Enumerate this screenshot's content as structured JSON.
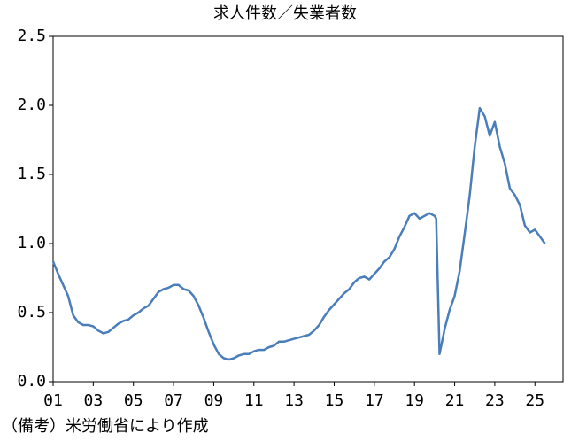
{
  "chart_data": {
    "type": "line",
    "title": "求人件数／失業者数",
    "note": "（備考）米労働省により作成",
    "x": [
      1,
      1.25,
      1.5,
      1.75,
      2,
      2.25,
      2.5,
      2.75,
      3,
      3.25,
      3.5,
      3.75,
      4,
      4.25,
      4.5,
      4.75,
      5,
      5.25,
      5.5,
      5.75,
      6,
      6.25,
      6.5,
      6.75,
      7,
      7.25,
      7.5,
      7.75,
      8,
      8.25,
      8.5,
      8.75,
      9,
      9.25,
      9.5,
      9.75,
      10,
      10.25,
      10.5,
      10.75,
      11,
      11.25,
      11.5,
      11.75,
      12,
      12.25,
      12.5,
      12.75,
      13,
      13.25,
      13.5,
      13.75,
      14,
      14.25,
      14.5,
      14.75,
      15,
      15.25,
      15.5,
      15.75,
      16,
      16.25,
      16.5,
      16.75,
      17,
      17.25,
      17.5,
      17.75,
      18,
      18.25,
      18.5,
      18.75,
      19,
      19.25,
      19.5,
      19.75,
      20,
      20.08,
      20.25,
      20.5,
      20.75,
      21,
      21.25,
      21.5,
      21.75,
      22,
      22.25,
      22.5,
      22.75,
      23,
      23.25,
      23.5,
      23.75,
      24,
      24.25,
      24.5,
      24.75,
      25,
      25.25,
      25.5
    ],
    "series": [
      {
        "name": "求人件数／失業者数",
        "color": "#4a7ebb",
        "values": [
          0.87,
          0.78,
          0.7,
          0.62,
          0.48,
          0.43,
          0.41,
          0.41,
          0.4,
          0.37,
          0.35,
          0.36,
          0.39,
          0.42,
          0.44,
          0.45,
          0.48,
          0.5,
          0.53,
          0.55,
          0.6,
          0.65,
          0.67,
          0.68,
          0.7,
          0.7,
          0.67,
          0.66,
          0.62,
          0.55,
          0.46,
          0.36,
          0.27,
          0.2,
          0.17,
          0.16,
          0.17,
          0.19,
          0.2,
          0.2,
          0.22,
          0.23,
          0.23,
          0.25,
          0.26,
          0.29,
          0.29,
          0.3,
          0.31,
          0.32,
          0.33,
          0.34,
          0.37,
          0.41,
          0.47,
          0.52,
          0.56,
          0.6,
          0.64,
          0.67,
          0.72,
          0.75,
          0.76,
          0.74,
          0.78,
          0.82,
          0.87,
          0.9,
          0.96,
          1.05,
          1.12,
          1.2,
          1.22,
          1.18,
          1.2,
          1.22,
          1.2,
          1.18,
          0.2,
          0.38,
          0.52,
          0.62,
          0.8,
          1.07,
          1.35,
          1.7,
          1.98,
          1.92,
          1.78,
          1.88,
          1.7,
          1.58,
          1.4,
          1.35,
          1.28,
          1.13,
          1.08,
          1.1,
          1.05,
          1.0
        ]
      }
    ],
    "xlim": [
      1,
      26.4
    ],
    "xticks": [
      {
        "value": 1,
        "label": "01"
      },
      {
        "value": 3,
        "label": "03"
      },
      {
        "value": 5,
        "label": "05"
      },
      {
        "value": 7,
        "label": "07"
      },
      {
        "value": 9,
        "label": "09"
      },
      11,
      13,
      15,
      17,
      19,
      21,
      23,
      25
    ],
    "ylim": [
      0,
      2.5
    ],
    "yticks": [
      {
        "value": 0,
        "label": "0.0"
      },
      0.5,
      {
        "value": 1,
        "label": "1.0"
      },
      1.5,
      {
        "value": 2,
        "label": "2.0"
      },
      2.5
    ]
  }
}
